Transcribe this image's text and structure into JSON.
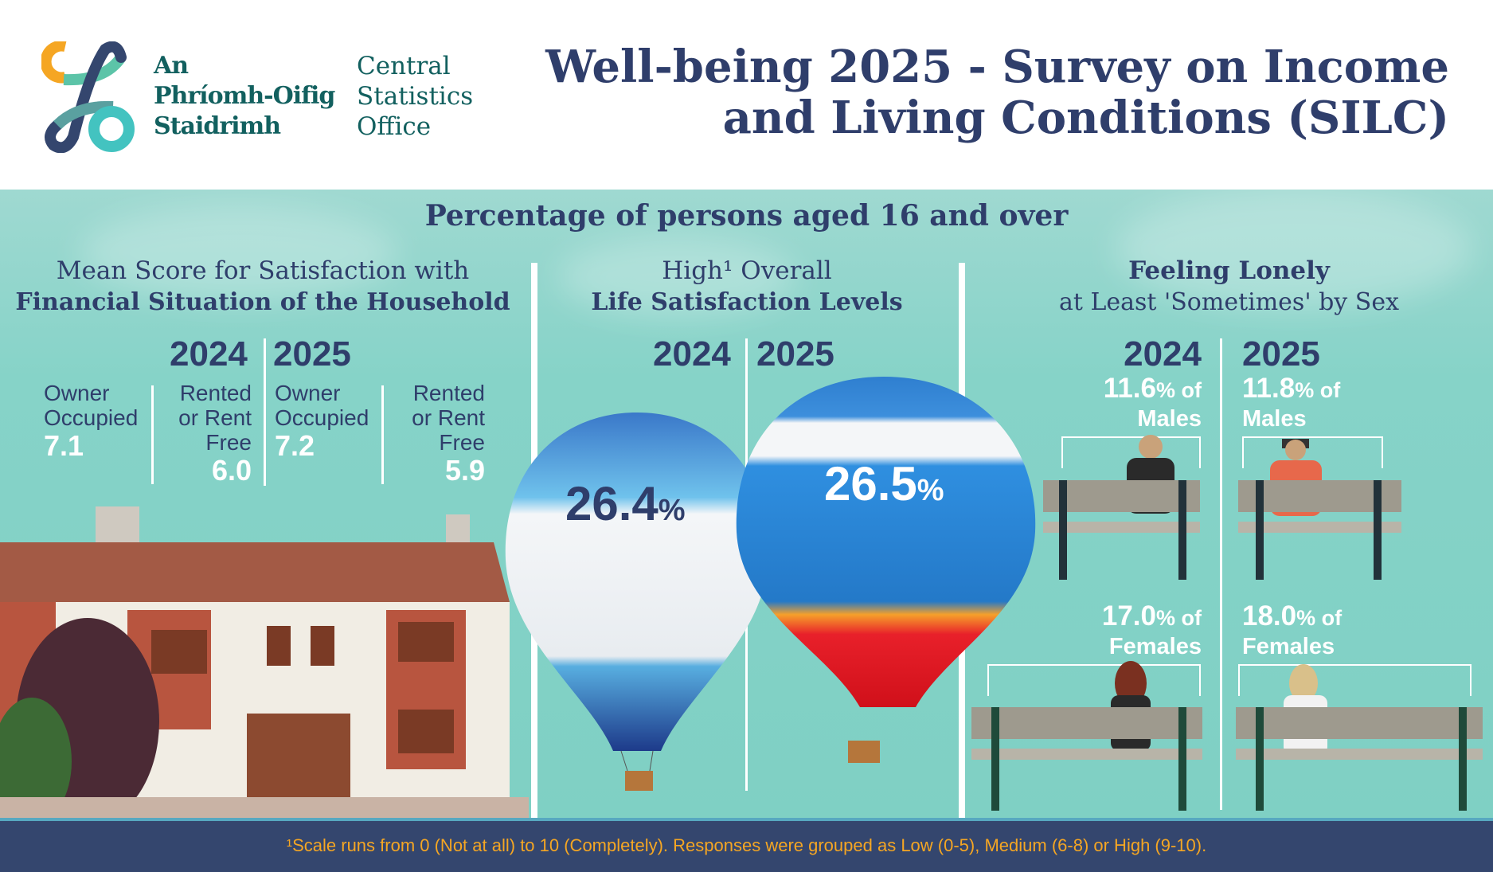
{
  "header": {
    "logo": {
      "irish": [
        "An",
        "Phríomh-Oifig",
        "Staidrimh"
      ],
      "english": [
        "Central",
        "Statistics",
        "Office"
      ]
    },
    "title_lines": [
      "Well-being 2025 - Survey on Income",
      "and Living Conditions (SILC)"
    ]
  },
  "subtitle": "Percentage of persons aged 16 and over",
  "financial": {
    "heading_line1": "Mean Score for Satisfaction with",
    "heading_line2": "Financial Situation of the Household",
    "years": [
      "2024",
      "2025"
    ],
    "groups": [
      {
        "year": "2024",
        "tenure": [
          "Owner",
          "Occupied"
        ],
        "value": "7.1"
      },
      {
        "year": "2024",
        "tenure": [
          "Rented",
          "or Rent",
          "Free"
        ],
        "value": "6.0"
      },
      {
        "year": "2025",
        "tenure": [
          "Owner",
          "Occupied"
        ],
        "value": "7.2"
      },
      {
        "year": "2025",
        "tenure": [
          "Rented",
          "or Rent",
          "Free"
        ],
        "value": "5.9"
      }
    ]
  },
  "life_satisfaction": {
    "heading_line1": "High¹ Overall",
    "heading_line2": "Life Satisfaction Levels",
    "years": [
      "2024",
      "2025"
    ],
    "values": [
      {
        "year": "2024",
        "number": "26.4",
        "unit": "%"
      },
      {
        "year": "2025",
        "number": "26.5",
        "unit": "%"
      }
    ]
  },
  "lonely": {
    "heading_line1": "Feeling Lonely",
    "heading_line2": "at Least 'Sometimes' by Sex",
    "years": [
      "2024",
      "2025"
    ],
    "males": [
      {
        "year": "2024",
        "number": "11.6",
        "suffix": "% of",
        "group": "Males"
      },
      {
        "year": "2025",
        "number": "11.8",
        "suffix": "% of",
        "group": "Males"
      }
    ],
    "females": [
      {
        "year": "2024",
        "number": "17.0",
        "suffix": "% of",
        "group": "Females"
      },
      {
        "year": "2025",
        "number": "18.0",
        "suffix": "% of",
        "group": "Females"
      }
    ]
  },
  "footer": {
    "note": "¹Scale runs from 0 (Not at all) to 10 (Completely). Responses were grouped as Low (0-5), Medium (6-8) or High (9-10)."
  },
  "colors": {
    "navy": "#2f3e6b",
    "teal": "#7fd0c4",
    "footer_bg": "#34466e",
    "footer_text": "#f5a623",
    "logo_text": "#12605f"
  }
}
